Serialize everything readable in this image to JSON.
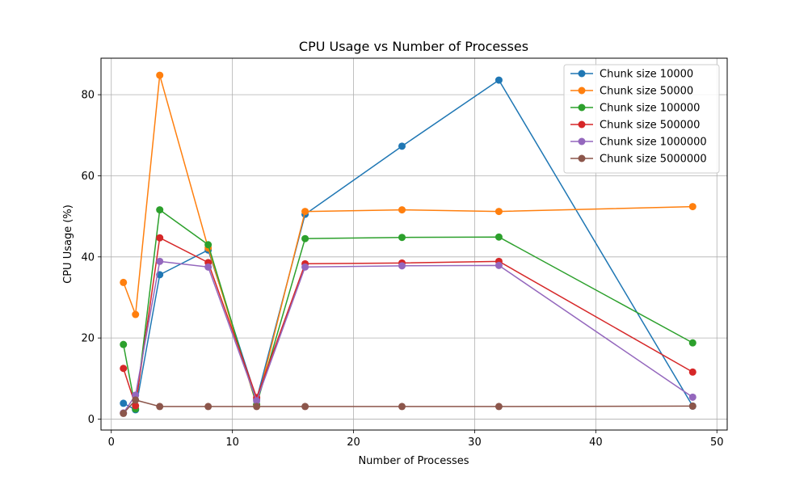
{
  "chart_data": {
    "type": "line",
    "title": "CPU Usage vs Number of Processes",
    "xlabel": "Number of Processes",
    "ylabel": "CPU Usage (%)",
    "xlim": [
      -0.85,
      50.85
    ],
    "ylim": [
      -2.7,
      89.0
    ],
    "xticks": [
      0,
      10,
      20,
      30,
      40,
      50
    ],
    "yticks": [
      0,
      20,
      40,
      60,
      80
    ],
    "grid": true,
    "legend_position": "top-right",
    "x": [
      1,
      2,
      4,
      8,
      12,
      16,
      24,
      32,
      48
    ],
    "series": [
      {
        "name": "Chunk size 10000",
        "color": "#1f77b4",
        "values": [
          3.9,
          2.3,
          35.6,
          41.7,
          4.9,
          50.5,
          67.3,
          83.6,
          3.2
        ]
      },
      {
        "name": "Chunk size 50000",
        "color": "#ff7f0e",
        "values": [
          33.7,
          25.8,
          84.8,
          42.2,
          3.5,
          51.2,
          51.6,
          51.2,
          52.4
        ]
      },
      {
        "name": "Chunk size 100000",
        "color": "#2ca02c",
        "values": [
          18.4,
          2.5,
          51.6,
          43.0,
          3.6,
          44.5,
          44.8,
          44.9,
          18.8
        ]
      },
      {
        "name": "Chunk size 500000",
        "color": "#d62728",
        "values": [
          12.5,
          3.3,
          44.7,
          38.6,
          5.3,
          38.3,
          38.5,
          38.9,
          11.6
        ]
      },
      {
        "name": "Chunk size 1000000",
        "color": "#9467bd",
        "values": [
          1.5,
          5.9,
          38.9,
          37.5,
          4.5,
          37.5,
          37.8,
          37.9,
          5.4
        ]
      },
      {
        "name": "Chunk size 5000000",
        "color": "#8c564b",
        "values": [
          1.4,
          4.7,
          3.1,
          3.1,
          3.1,
          3.1,
          3.1,
          3.1,
          3.2
        ]
      }
    ]
  }
}
